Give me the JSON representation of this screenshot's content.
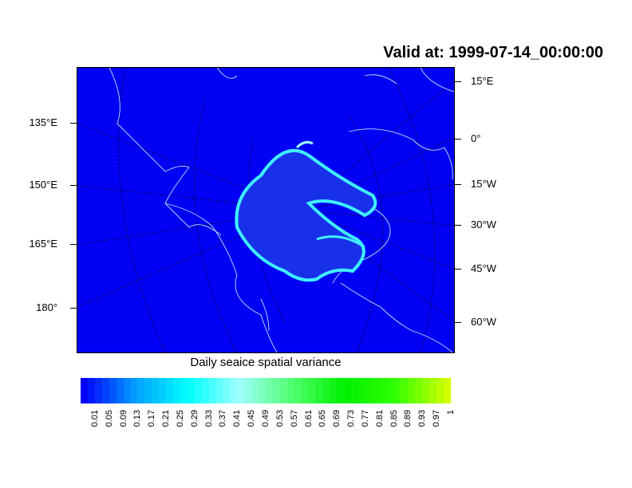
{
  "title": "Valid at: 1999-07-14_00:00:00",
  "left_labels": [
    "135°E",
    "150°E",
    "165°E",
    "180°"
  ],
  "right_labels": [
    "15°E",
    "0°",
    "15°W",
    "30°W",
    "45°W",
    "60°W"
  ],
  "colorbar": {
    "title": "Daily seaice spatial variance",
    "labels": [
      "0.01",
      "0.05",
      "0.09",
      "0.13",
      "0.17",
      "0.21",
      "0.25",
      "0.29",
      "0.33",
      "0.37",
      "0.41",
      "0.45",
      "0.49",
      "0.53",
      "0.57",
      "0.61",
      "0.65",
      "0.69",
      "0.73",
      "0.77",
      "0.81",
      "0.85",
      "0.89",
      "0.93",
      "0.97",
      "1"
    ],
    "color_stops": [
      "#0000ff",
      "#00a0ff",
      "#00ffff",
      "#a0ffff",
      "#50ff70",
      "#00f000",
      "#30ff00",
      "#d0ff00"
    ]
  },
  "colors": {
    "ocean_background": "#0000f5",
    "coastline": "#b0e8ff",
    "ice_edge": "#40f0ff"
  }
}
